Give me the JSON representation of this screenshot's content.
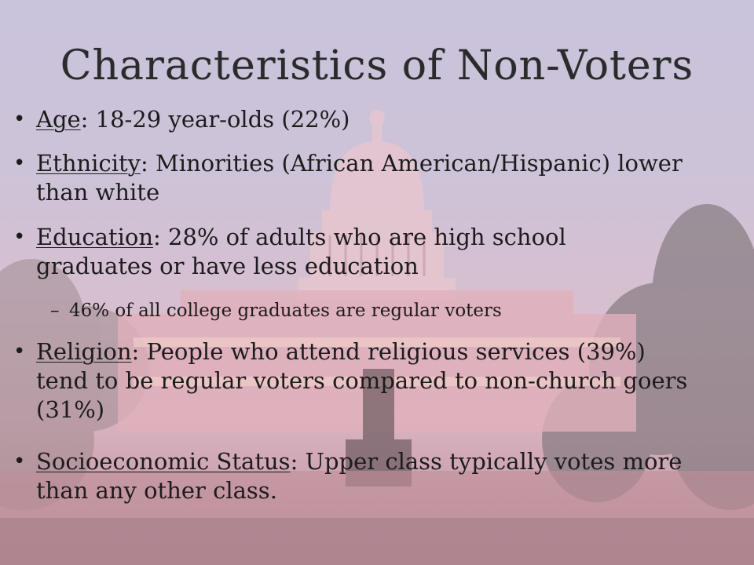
{
  "slide": {
    "title": "Characteristics of Non-Voters",
    "bullets": [
      {
        "term": "Age",
        "text": ": 18-29 year-olds (22%)"
      },
      {
        "term": "Ethnicity",
        "text": ": Minorities (African American/Hispanic) lower than white"
      },
      {
        "term": "Education",
        "text": ": 28% of adults who are high school graduates or have less education"
      },
      {
        "term": "Religion",
        "text": ": People who attend religious services (39%) tend to be regular voters compared to non-church goers (31%)"
      },
      {
        "term": "Socioeconomic Status",
        "text": ": Upper class typically votes more than any other class."
      }
    ],
    "subbullets": [
      {
        "text": "46% of all college graduates are regular voters"
      }
    ]
  },
  "colors": {
    "sky_top": "#c9c3dc",
    "sky_bottom": "#d9b2bf",
    "text": "#1c1c1c"
  },
  "background": {
    "icon": "capitol-building-photo"
  }
}
